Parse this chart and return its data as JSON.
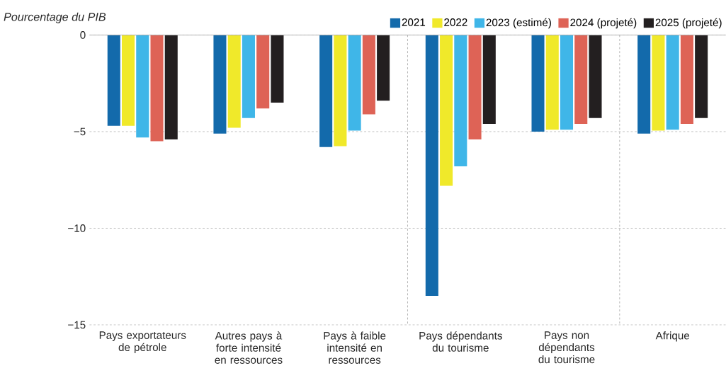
{
  "chart_data": {
    "type": "bar",
    "ylabel": "Pourcentage du PIB",
    "categories": [
      "Pays exportateurs de pétrole",
      "Autres pays à forte intensité en ressources",
      "Pays à faible intensité en ressources",
      "Pays dépendants du tourisme",
      "Pays non dépendants du tourisme",
      "Afrique"
    ],
    "series": [
      {
        "name": "2021",
        "color": "#136aab",
        "values": [
          -4.7,
          -5.1,
          -5.8,
          -13.5,
          -5.0,
          -5.1
        ]
      },
      {
        "name": "2022",
        "color": "#f0e92a",
        "values": [
          -4.7,
          -4.8,
          -5.75,
          -7.8,
          -4.9,
          -4.95
        ]
      },
      {
        "name": "2023 (estimé)",
        "color": "#3fb6e8",
        "values": [
          -5.3,
          -4.3,
          -4.95,
          -6.8,
          -4.9,
          -4.9
        ]
      },
      {
        "name": "2024 (projeté)",
        "color": "#de6356",
        "values": [
          -5.5,
          -3.8,
          -4.1,
          -5.4,
          -4.6,
          -4.6
        ]
      },
      {
        "name": "2025 (projeté)",
        "color": "#231f20",
        "values": [
          -5.4,
          -3.5,
          -3.4,
          -4.6,
          -4.3,
          -4.3
        ]
      }
    ],
    "ylim": [
      -15,
      0
    ],
    "yticks": [
      {
        "value": -15,
        "label": "−15"
      },
      {
        "value": -10,
        "label": "−10"
      },
      {
        "value": -5,
        "label": "−5"
      },
      0
    ],
    "grid": "y",
    "legend": "top right"
  }
}
